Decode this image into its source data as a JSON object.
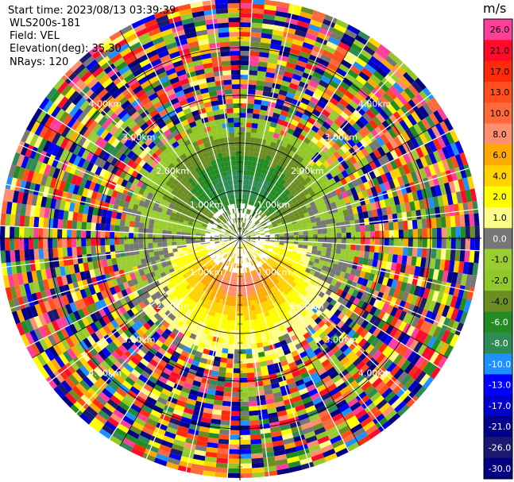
{
  "header": {
    "start_time": "Start time: 2023/08/13 03:39:39",
    "station": "WLS200s-181",
    "field": "Field: VEL",
    "elevation": "Elevation(deg): 35.30",
    "nrays": "NRays: 120"
  },
  "colorbar": {
    "unit": "m/s",
    "levels": [
      {
        "label": "26.0",
        "color": "#ff3f9a"
      },
      {
        "label": "21.0",
        "color": "#ff0a2a"
      },
      {
        "label": "17.0",
        "color": "#ff2a0a"
      },
      {
        "label": "13.0",
        "color": "#ff4f1f"
      },
      {
        "label": "10.0",
        "color": "#ff6a3a"
      },
      {
        "label": "8.0",
        "color": "#ff8f6f"
      },
      {
        "label": "6.0",
        "color": "#ffaa00"
      },
      {
        "label": "4.0",
        "color": "#ffd200"
      },
      {
        "label": "2.0",
        "color": "#ffff00"
      },
      {
        "label": "1.0",
        "color": "#fffd8a"
      },
      {
        "label": "0.0",
        "color": "#777777"
      },
      {
        "label": "-1.0",
        "color": "#9acd32"
      },
      {
        "label": "-2.0",
        "color": "#8fc828"
      },
      {
        "label": "-4.0",
        "color": "#6b8e23"
      },
      {
        "label": "-6.0",
        "color": "#228b22"
      },
      {
        "label": "-8.0",
        "color": "#2e8b57"
      },
      {
        "label": "-10.0",
        "color": "#1e90ff"
      },
      {
        "label": "-13.0",
        "color": "#0000ff"
      },
      {
        "label": "-17.0",
        "color": "#0000cd"
      },
      {
        "label": "-21.0",
        "color": "#00008b"
      },
      {
        "label": "-26.0",
        "color": "#191970"
      },
      {
        "label": "-30.0",
        "color": "#000080"
      }
    ]
  },
  "range_rings": [
    "1.00km",
    "2.00km",
    "3.00km",
    "4.00km"
  ]
}
